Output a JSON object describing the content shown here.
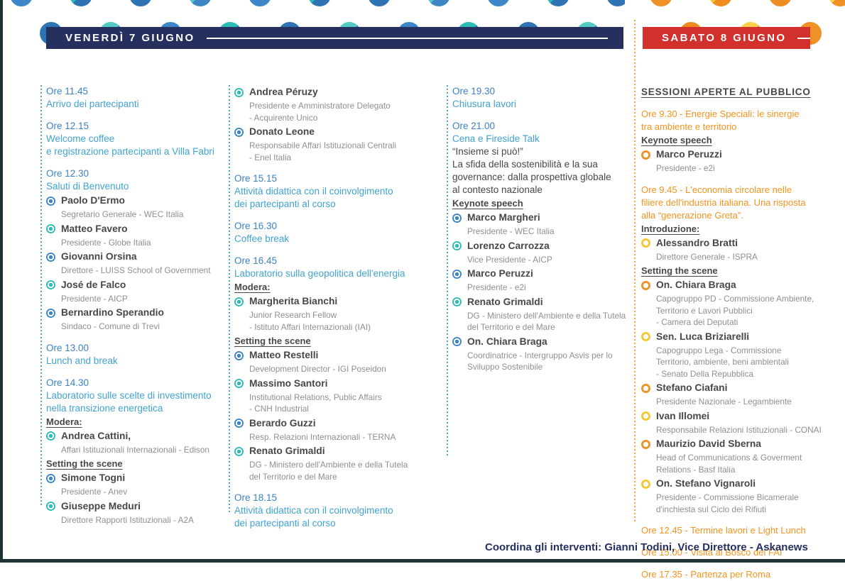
{
  "banners": {
    "friday": "VENERDÌ 7 GIUGNO",
    "saturday": "SABATO 8 GIUGNO"
  },
  "footer": {
    "text": "Coordina gli interventi: Gianni Todini, Vice Direttore - Askanews"
  },
  "colors": {
    "navy": "#25305f",
    "red": "#d2302c",
    "blueTime": "#3c82c2",
    "blueTitle": "#41a3d2",
    "orange": "#f6931d",
    "dark": "#47474a",
    "gray": "#8f8f92"
  },
  "bullet_colors": {
    "blue": "#3d87c8",
    "teal": "#2dbdb6",
    "orange": "#f09125",
    "yellow": "#f8c630"
  },
  "friday": {
    "columns": [
      {
        "blocks": [
          {
            "type": "time",
            "text": "Ore 11.45"
          },
          {
            "type": "title",
            "text": "Arrivo dei partecipanti"
          },
          {
            "type": "time",
            "text": "Ore 12.15"
          },
          {
            "type": "title",
            "text": "Welcome coffee\ne registrazione partecipanti a Villa Fabri"
          },
          {
            "type": "time",
            "text": "Ore 12.30"
          },
          {
            "type": "title",
            "text": "Saluti di Benvenuto"
          },
          {
            "type": "speaker",
            "name": "Paolo D'Ermo",
            "role": "Segretario Generale - WEC Italia",
            "bullet": "blue"
          },
          {
            "type": "speaker",
            "name": "Matteo Favero",
            "role": "Presidente - Globe Italia",
            "bullet": "teal"
          },
          {
            "type": "speaker",
            "name": "Giovanni Orsina",
            "role": "Direttore - LUISS School of Government",
            "bullet": "blue"
          },
          {
            "type": "speaker",
            "name": "José de Falco",
            "role": "Presidente - AICP",
            "bullet": "teal"
          },
          {
            "type": "speaker",
            "name": "Bernardino Sperandio",
            "role": "Sindaco - Comune di Trevi",
            "bullet": "blue"
          },
          {
            "type": "time",
            "text": "Ore 13.00"
          },
          {
            "type": "title",
            "text": "Lunch and break"
          },
          {
            "type": "time",
            "text": "Ore 14.30"
          },
          {
            "type": "title",
            "text": "Laboratorio sulle scelte di investimento\nnella transizione energetica"
          },
          {
            "type": "label",
            "text": "Modera:"
          },
          {
            "type": "speaker",
            "name": "Andrea Cattini,",
            "role": "Affari Istituzionali Internazionali - Edison",
            "bullet": "teal"
          },
          {
            "type": "label",
            "text": "Setting the scene"
          },
          {
            "type": "speaker",
            "name": "Simone Togni",
            "role": "Presidente - Anev",
            "bullet": "blue"
          },
          {
            "type": "speaker",
            "name": "Giuseppe Meduri",
            "role": "Direttore Rapporti Istituzionali - A2A",
            "bullet": "teal"
          }
        ]
      },
      {
        "blocks": [
          {
            "type": "speaker",
            "name": "Andrea Péruzy",
            "role": "Presidente e Amministratore Delegato\n- Acquirente Unico",
            "bullet": "teal"
          },
          {
            "type": "speaker",
            "name": "Donato Leone",
            "role": "Responsabile Affari Istituzionali Centrali\n- Enel Italia",
            "bullet": "blue"
          },
          {
            "type": "time",
            "text": "Ore 15.15"
          },
          {
            "type": "title",
            "text": "Attività didattica con il coinvolgimento\ndei partecipanti al corso"
          },
          {
            "type": "time",
            "text": "Ore 16.30"
          },
          {
            "type": "title",
            "text": "Coffee break"
          },
          {
            "type": "time",
            "text": "Ore 16.45"
          },
          {
            "type": "title",
            "text": "Laboratorio sulla geopolitica dell'energia"
          },
          {
            "type": "label",
            "text": "Modera:"
          },
          {
            "type": "speaker",
            "name": "Margherita Bianchi",
            "role": "Junior Research Fellow\n- Istituto Affari Internazionali (IAI)",
            "bullet": "teal"
          },
          {
            "type": "label",
            "text": "Setting the scene"
          },
          {
            "type": "speaker",
            "name": "Matteo Restelli",
            "role": "Development Director - IGI Poseidon",
            "bullet": "blue"
          },
          {
            "type": "speaker",
            "name": "Massimo Santori",
            "role": "Institutional Relations, Public Affairs\n- CNH Industrial",
            "bullet": "teal"
          },
          {
            "type": "speaker",
            "name": "Berardo Guzzi",
            "role": "Resp. Relazioni Internazionali - TERNA",
            "bullet": "blue"
          },
          {
            "type": "speaker",
            "name": "Renato Grimaldi",
            "role": "DG - Ministero dell'Ambiente e della Tutela\ndel Territorio e del Mare",
            "bullet": "teal"
          },
          {
            "type": "time",
            "text": "Ore 18.15"
          },
          {
            "type": "title",
            "text": "Attività didattica con il coinvolgimento\ndei partecipanti al corso"
          }
        ]
      },
      {
        "blocks": [
          {
            "type": "time",
            "text": "Ore 19.30"
          },
          {
            "type": "title",
            "text": "Chiusura lavori"
          },
          {
            "type": "time",
            "text": "Ore 21.00"
          },
          {
            "type": "title",
            "text": "Cena e Fireside Talk"
          },
          {
            "type": "text",
            "text": "“Insieme si può!”"
          },
          {
            "type": "text",
            "text": "La sfida della sostenibilità e la sua\ngovernance: dalla prospettiva globale\nal contesto nazionale"
          },
          {
            "type": "label",
            "text": "Keynote speech"
          },
          {
            "type": "speaker",
            "name": "Marco Margheri",
            "role": "Presidente - WEC Italia",
            "bullet": "blue"
          },
          {
            "type": "speaker",
            "name": "Lorenzo Carrozza",
            "role": "Vice Presidente - AICP",
            "bullet": "teal"
          },
          {
            "type": "speaker",
            "name": "Marco Peruzzi",
            "role": "Presidente - e2i",
            "bullet": "blue"
          },
          {
            "type": "speaker",
            "name": "Renato Grimaldi",
            "role": "DG - Ministero dell'Ambiente e della Tutela\ndel Territorio e del Mare",
            "bullet": "teal"
          },
          {
            "type": "speaker",
            "name": "On. Chiara Braga",
            "role": "Coordinatrice - Intergruppo Asvis per lo\nSviluppo Sostenibile",
            "bullet": "blue"
          }
        ]
      }
    ]
  },
  "saturday": {
    "blocks": [
      {
        "type": "heading",
        "text": "SESSIONI APERTE AL PUBBLICO"
      },
      {
        "type": "otitle",
        "text": "Ore 9.30 - Energie Speciali: le sinergie\ntra ambiente e territorio"
      },
      {
        "type": "label",
        "text": "Keynote speech"
      },
      {
        "type": "speaker",
        "name": "Marco Peruzzi",
        "role": "Presidente - e2i",
        "bullet": "orange"
      },
      {
        "type": "otitle",
        "text": "Ore 9.45 - L'economia circolare nelle\nfiliere dell'industria italiana. Una risposta\nalla “generazione Greta”."
      },
      {
        "type": "label",
        "text": "Introduzione:"
      },
      {
        "type": "speaker",
        "name": "Alessandro Bratti",
        "role": "Direttore Generale - ISPRA",
        "bullet": "yellow"
      },
      {
        "type": "label",
        "text": "Setting the scene"
      },
      {
        "type": "speaker",
        "name": "On. Chiara Braga",
        "role": "Capogruppo PD - Commissione Ambiente,\nTerritorio e Lavori Pubblici\n- Camera dei Deputati",
        "bullet": "orange"
      },
      {
        "type": "speaker",
        "name": "Sen. Luca Briziarelli",
        "role": "Capogruppo Lega - Commissione\nTerritorio, ambiente, beni ambientali\n- Senato Della Repubblica",
        "bullet": "yellow"
      },
      {
        "type": "speaker",
        "name": "Stefano Ciafani",
        "role": "Presidente Nazionale - Legambiente",
        "bullet": "orange"
      },
      {
        "type": "speaker",
        "name": "Ivan Illomei",
        "role": "Responsabile Relazioni Istituzionali - CONAI",
        "bullet": "yellow"
      },
      {
        "type": "speaker",
        "name": "Maurizio David Sberna",
        "role": "Head of Communications & Goverment\nRelations - Basf Italia",
        "bullet": "orange"
      },
      {
        "type": "speaker",
        "name": "On. Stefano Vignaroli",
        "role": "Presidente - Commissione Bicamerale\nd'inchiesta sul Ciclo dei Rifiuti",
        "bullet": "yellow"
      },
      {
        "type": "otitle",
        "text": "Ore 12.45 - Termine lavori e Light Lunch"
      },
      {
        "type": "otitle",
        "text": "Ore 15.00 - Visita al Bosco del FAI"
      },
      {
        "type": "otitle",
        "text": "Ore 17.35 - Partenza per Roma"
      }
    ]
  }
}
